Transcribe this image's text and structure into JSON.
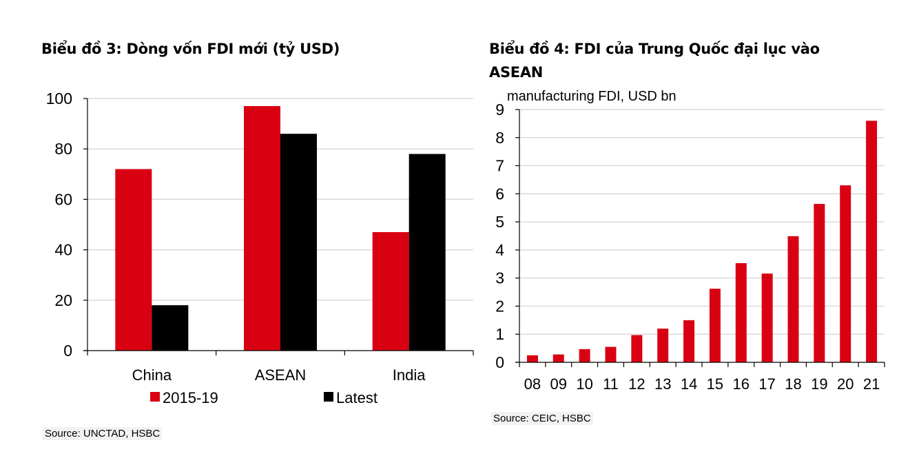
{
  "chart_data": [
    {
      "type": "bar",
      "title": "Biểu đồ 3: Dòng vốn FDI mới (tỷ USD)",
      "xlabel": "",
      "ylabel": "",
      "categories": [
        "China",
        "ASEAN",
        "India"
      ],
      "series": [
        {
          "name": "2015-19",
          "color": "#d90012",
          "values": [
            72,
            97,
            47
          ]
        },
        {
          "name": "Latest",
          "color": "#000000",
          "values": [
            18,
            86,
            78
          ]
        }
      ],
      "ylim": [
        0,
        100
      ],
      "yticks": [
        "0",
        "20",
        "40",
        "60",
        "80",
        "100"
      ],
      "ytick_values": [
        0,
        20,
        40,
        60,
        80,
        100
      ],
      "grid": true,
      "legend": "bottom",
      "source": "Source: UNCTAD, HSBC"
    },
    {
      "type": "bar",
      "title": "Biểu đồ 4: FDI của Trung Quốc đại lục vào ASEAN",
      "ylabel": "manufacturing  FDI, USD bn",
      "xlabel": "",
      "categories": [
        "08",
        "09",
        "10",
        "11",
        "12",
        "13",
        "14",
        "15",
        "16",
        "17",
        "18",
        "19",
        "20",
        "21"
      ],
      "series": [
        {
          "name": "manufacturing FDI",
          "color": "#d90012",
          "values": [
            0.25,
            0.28,
            0.47,
            0.55,
            0.97,
            1.2,
            1.5,
            2.62,
            3.53,
            3.16,
            4.49,
            5.64,
            6.3,
            8.6
          ]
        }
      ],
      "ylim": [
        0,
        9
      ],
      "yticks": [
        "0",
        "1",
        "2",
        "3",
        "4",
        "5",
        "6",
        "7",
        "8",
        "9"
      ],
      "ytick_values": [
        0,
        1,
        2,
        3,
        4,
        5,
        6,
        7,
        8,
        9
      ],
      "grid": true,
      "legend": "none",
      "source": "Source: CEIC, HSBC"
    }
  ]
}
